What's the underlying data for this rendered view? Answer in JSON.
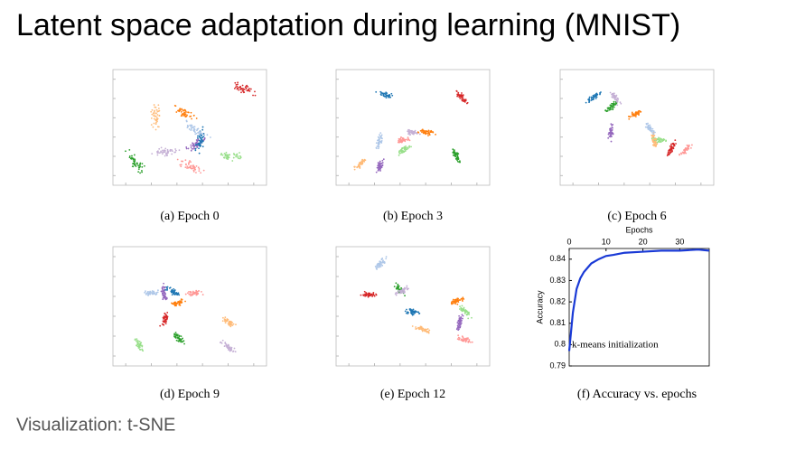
{
  "title": "Latent space adaptation during learning (MNIST)",
  "captions": [
    "(a) Epoch 0",
    "(b) Epoch 3",
    "(c) Epoch 6",
    "(d) Epoch 9",
    "(e) Epoch 12",
    "(f) Accuracy vs. epochs"
  ],
  "footer": "Visualization: t-SNE",
  "chart_data": {
    "type": "line",
    "xlabel": "Epochs",
    "ylabel": "Accuracy",
    "annotation": "k-means initialization",
    "x": [
      0,
      1,
      2,
      3,
      4,
      5,
      6,
      8,
      10,
      12,
      15,
      20,
      25,
      30,
      35,
      38
    ],
    "values": [
      0.797,
      0.815,
      0.826,
      0.831,
      0.834,
      0.836,
      0.838,
      0.84,
      0.8415,
      0.842,
      0.843,
      0.8435,
      0.844,
      0.844,
      0.8445,
      0.844
    ],
    "color": "#1a3ad6",
    "xlim": [
      0,
      38
    ],
    "xticks": [
      0,
      10,
      20,
      30
    ],
    "ylim": [
      0.79,
      0.845
    ],
    "yticks": [
      0.79,
      0.8,
      0.81,
      0.82,
      0.83,
      0.84
    ]
  }
}
